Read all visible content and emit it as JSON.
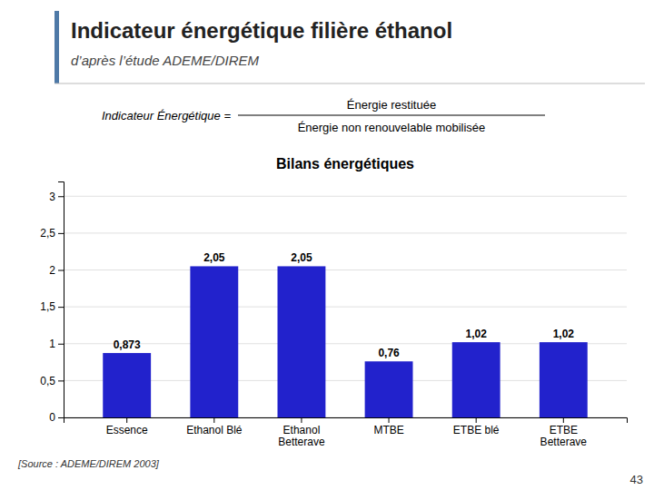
{
  "title": "Indicateur énergétique filière éthanol",
  "subtitle": "d’après l’étude ADEME/DIREM",
  "formula": {
    "left": "Indicateur Énergétique = ",
    "numerator": "Énergie restituée",
    "denominator": "Énergie non renouvelable mobilisée"
  },
  "source": "[Source : ADEME/DIREM 2003]",
  "page_number": "43",
  "chart_data": {
    "type": "bar",
    "title": "Bilans énergétiques",
    "categories": [
      "Essence",
      "Ethanol Blé",
      "Ethanol\nBetterave",
      "MTBE",
      "ETBE blé",
      "ETBE\nBetterave"
    ],
    "values": [
      0.873,
      2.05,
      2.05,
      0.76,
      1.02,
      1.02
    ],
    "value_labels": [
      "0,873",
      "2,05",
      "2,05",
      "0,76",
      "1,02",
      "1,02"
    ],
    "data_labels": true,
    "color": "#2222cc",
    "ylim": [
      0,
      3.2
    ],
    "yticks": [
      0,
      {
        "value": 0.5,
        "label": "0,5"
      },
      1,
      {
        "value": 1.5,
        "label": "1,5"
      },
      2,
      {
        "value": 2.5,
        "label": "2,5"
      },
      3
    ],
    "grid": true
  }
}
